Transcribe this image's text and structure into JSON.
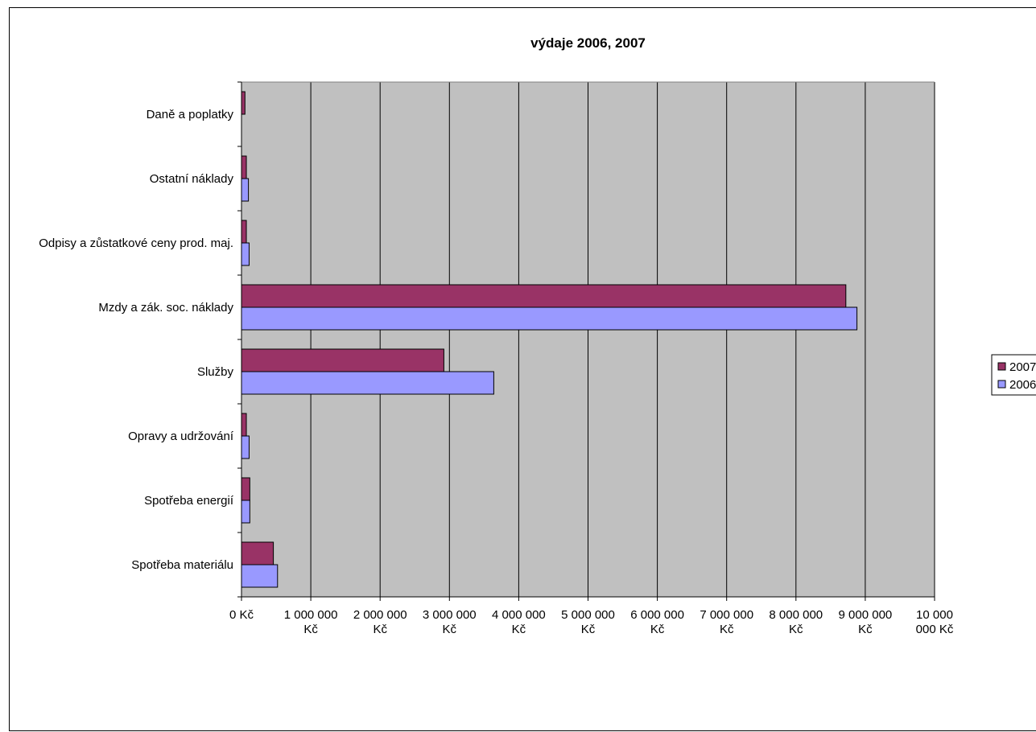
{
  "chart_data": {
    "type": "bar",
    "orientation": "horizontal",
    "title": "výdaje 2006, 2007",
    "xlabel": "",
    "ylabel": "",
    "categories": [
      "Daně a poplatky",
      "Ostatní náklady",
      "Odpisy a zůstatkové ceny prod. maj.",
      "Mzdy a zák. soc. náklady",
      "Služby",
      "Opravy a udržování",
      "Spotřeba energií",
      "Spotřeba materiálu"
    ],
    "series": [
      {
        "name": "2007",
        "color": "#993366",
        "values": [
          50000,
          70000,
          70000,
          8720000,
          2920000,
          70000,
          120000,
          460000
        ]
      },
      {
        "name": "2006",
        "color": "#9999ff",
        "values": [
          0,
          100000,
          110000,
          8880000,
          3640000,
          110000,
          120000,
          520000
        ]
      }
    ],
    "xlim": [
      0,
      10000000
    ],
    "xticks": [
      {
        "value": 0,
        "label": [
          "0 Kč"
        ]
      },
      {
        "value": 1000000,
        "label": [
          "1 000 000",
          "Kč"
        ]
      },
      {
        "value": 2000000,
        "label": [
          "2 000 000",
          "Kč"
        ]
      },
      {
        "value": 3000000,
        "label": [
          "3 000 000",
          "Kč"
        ]
      },
      {
        "value": 4000000,
        "label": [
          "4 000 000",
          "Kč"
        ]
      },
      {
        "value": 5000000,
        "label": [
          "5 000 000",
          "Kč"
        ]
      },
      {
        "value": 6000000,
        "label": [
          "6 000 000",
          "Kč"
        ]
      },
      {
        "value": 7000000,
        "label": [
          "7 000 000",
          "Kč"
        ]
      },
      {
        "value": 8000000,
        "label": [
          "8 000 000",
          "Kč"
        ]
      },
      {
        "value": 9000000,
        "label": [
          "9 000 000",
          "Kč"
        ]
      },
      {
        "value": 10000000,
        "label": [
          "10 000",
          "000 Kč"
        ]
      }
    ],
    "grid": true,
    "plot_background": "#c0c0c0",
    "legend": {
      "position": "right",
      "order": [
        "2007",
        "2006"
      ]
    }
  }
}
